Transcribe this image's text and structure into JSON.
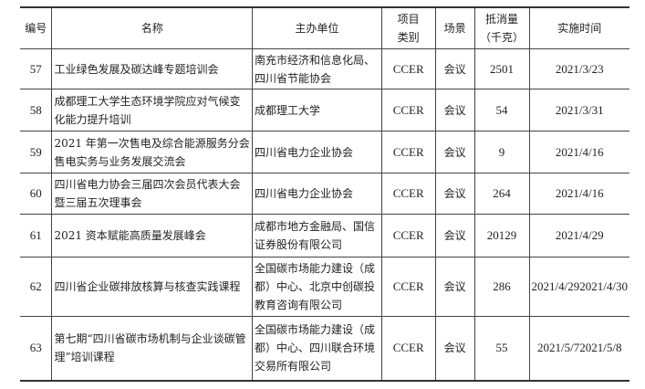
{
  "headers": [
    "编号",
    "名称",
    "主办单位",
    "项目类别",
    "场景",
    "抵消量（千克）",
    "实施时间"
  ],
  "header_lines": {
    "type_1": "项目",
    "type_2": "类别",
    "amount_1": "抵消量",
    "amount_2": "（千克）"
  },
  "rows": [
    {
      "id": "57",
      "name": "工业绿色发展及碳达峰专题培训会",
      "organizer": "南充市经济和信息化局、四川省节能协会",
      "type": "CCER",
      "scene": "会议",
      "amount": "2501",
      "date": "2021/3/23"
    },
    {
      "id": "58",
      "name": "成都理工大学生态环境学院应对气候变化能力提升培训",
      "organizer": "成都理工大学",
      "type": "CCER",
      "scene": "会议",
      "amount": "54",
      "date": "2021/3/31"
    },
    {
      "id": "59",
      "name": "2021 年第一次售电及综合能源服务分会售电实务与业务发展交流会",
      "organizer": "四川省电力企业协会",
      "type": "CCER",
      "scene": "会议",
      "amount": "9",
      "date": "2021/4/16"
    },
    {
      "id": "60",
      "name": "四川省电力协会三届四次会员代表大会暨三届五次理事会",
      "organizer": "四川省电力企业协会",
      "type": "CCER",
      "scene": "会议",
      "amount": "264",
      "date": "2021/4/16"
    },
    {
      "id": "61",
      "name": "2021 资本赋能高质量发展峰会",
      "organizer": "成都市地方金融局、国信证券股份有限公司",
      "type": "CCER",
      "scene": "会议",
      "amount": "20129",
      "date": "2021/4/29"
    },
    {
      "id": "62",
      "name": "四川省企业碳排放核算与核查实践课程",
      "organizer": "全国碳市场能力建设（成都）中心、北京中创碳投教育咨询有限公司",
      "type": "CCER",
      "scene": "会议",
      "amount": "286",
      "date": "2021/4/292021/4/30"
    },
    {
      "id": "63",
      "name": "第七期“四川省碳市场机制与企业谈碳管理”培训课程",
      "organizer": "全国碳市场能力建设（成都）中心、四川联合环境交易所有限公司",
      "type": "CCER",
      "scene": "会议",
      "amount": "55",
      "date": "2021/5/72021/5/8"
    }
  ]
}
